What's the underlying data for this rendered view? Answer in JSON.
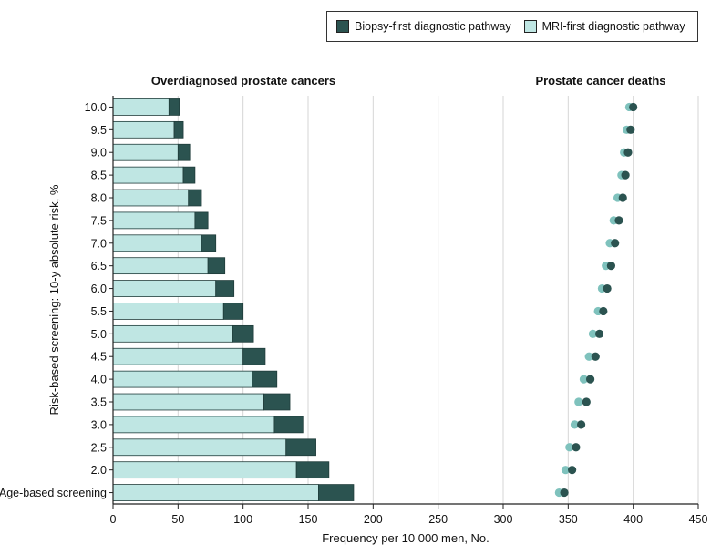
{
  "legend": {
    "biopsy_label": "Biopsy-first diagnostic pathway",
    "mri_label": "MRI-first diagnostic pathway"
  },
  "colors": {
    "biopsy": "#2b5350",
    "mri": "#bfe6e3",
    "mri_dot": "#7fc2bd",
    "grid": "#d6d6d6",
    "axis": "#222222"
  },
  "chart_data": {
    "type": "bar",
    "left_panel_title": "Overdiagnosed prostate cancers",
    "right_panel_title": "Prostate cancer deaths",
    "xlabel": "Frequency per 10 000 men, No.",
    "ylabel": "Risk-based screening: 10-y absolute risk, %",
    "xlim": [
      0,
      450
    ],
    "xticks": [
      0,
      50,
      100,
      150,
      200,
      250,
      300,
      350,
      400,
      450
    ],
    "categories": [
      "10.0",
      "9.5",
      "9.0",
      "8.5",
      "8.0",
      "7.5",
      "7.0",
      "6.5",
      "6.0",
      "5.5",
      "5.0",
      "4.5",
      "4.0",
      "3.5",
      "3.0",
      "2.5",
      "2.0",
      "Age-based screening"
    ],
    "series": [
      {
        "name": "MRI-first diagnostic pathway",
        "overdiagnosis": [
          43,
          47,
          50,
          54,
          58,
          63,
          68,
          73,
          79,
          85,
          92,
          100,
          107,
          116,
          124,
          133,
          141,
          158
        ],
        "deaths": [
          397,
          395,
          393,
          391,
          388,
          385,
          382,
          379,
          376,
          373,
          369,
          366,
          362,
          358,
          355,
          351,
          348,
          343
        ]
      },
      {
        "name": "Biopsy-first diagnostic pathway",
        "overdiagnosis": [
          51,
          54,
          59,
          63,
          68,
          73,
          79,
          86,
          93,
          100,
          108,
          117,
          126,
          136,
          146,
          156,
          166,
          185
        ],
        "deaths": [
          400,
          398,
          396,
          394,
          392,
          389,
          386,
          383,
          380,
          377,
          374,
          371,
          367,
          364,
          360,
          356,
          353,
          347
        ]
      }
    ]
  }
}
